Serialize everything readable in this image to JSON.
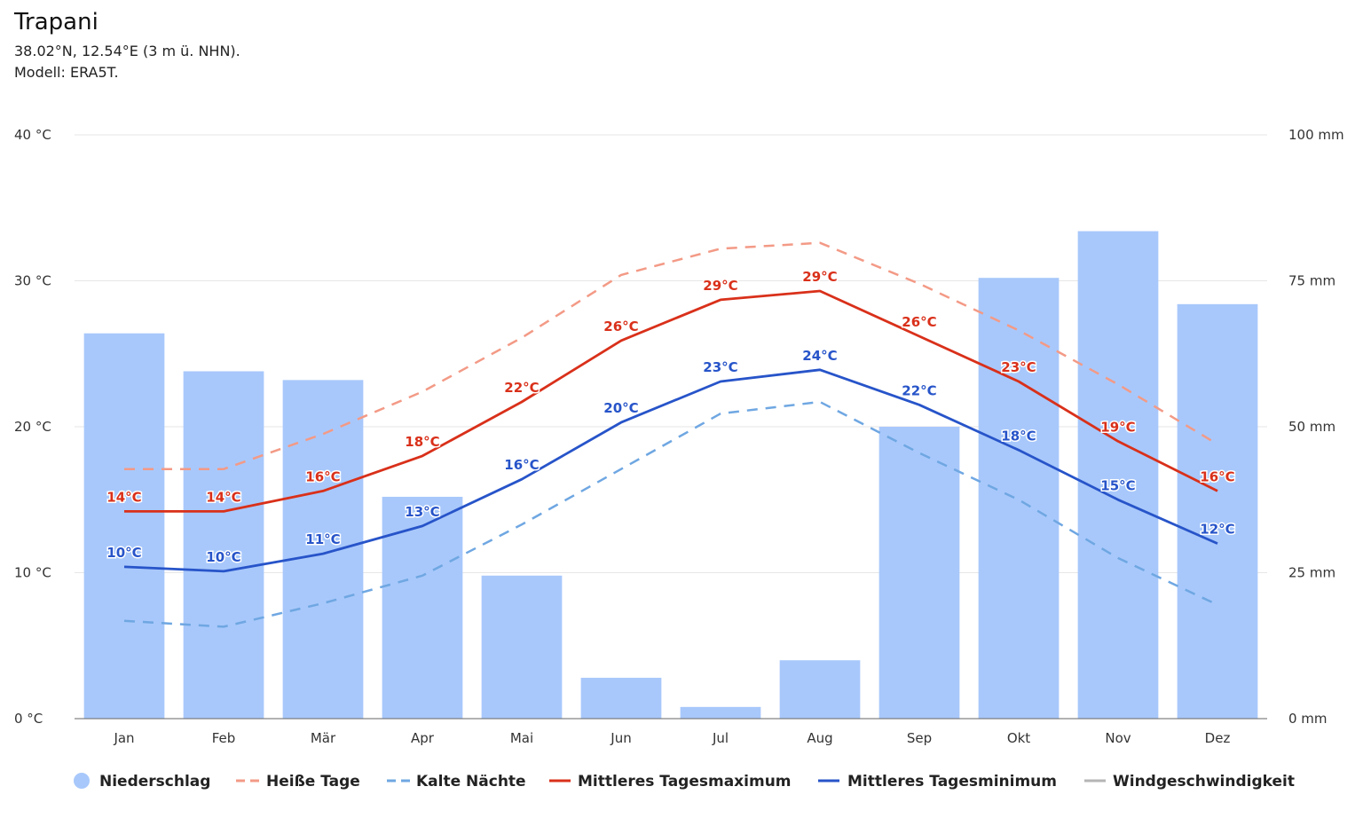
{
  "header": {
    "title": "Trapani",
    "coords": "38.02°N, 12.54°E (3 m ü. NHN).",
    "model": "Modell: ERA5T."
  },
  "colors": {
    "precip": "#a8c8fb",
    "hot": "#f39a86",
    "cold": "#6fa7e2",
    "tmax": "#d9301a",
    "tmin": "#2754c9",
    "wind": "#b5b5b5",
    "grid": "#e6e6e6",
    "axis": "#666666"
  },
  "chart_data": {
    "type": "bar+line",
    "categories": [
      "Jan",
      "Feb",
      "Mär",
      "Apr",
      "Mai",
      "Jun",
      "Jul",
      "Aug",
      "Sep",
      "Okt",
      "Nov",
      "Dez"
    ],
    "y_left": {
      "ticks": [
        0,
        10,
        20,
        30,
        40
      ],
      "tick_labels": [
        "0 °C",
        "10 °C",
        "20 °C",
        "30 °C",
        "40 °C"
      ],
      "range": [
        0,
        40
      ]
    },
    "y_right": {
      "ticks": [
        0,
        25,
        50,
        75,
        100
      ],
      "tick_labels": [
        "0 mm",
        "25 mm",
        "50 mm",
        "75 mm",
        "100 mm"
      ],
      "range": [
        0,
        100
      ]
    },
    "precipitation": {
      "name": "Niederschlag",
      "unit": "mm",
      "values": [
        66,
        59.5,
        58,
        38,
        24.5,
        7,
        2,
        10,
        50,
        75.5,
        83.5,
        71
      ]
    },
    "hot_days": {
      "name": "Heiße Tage",
      "values": [
        17.1,
        17.1,
        19.5,
        22.4,
        26.1,
        30.4,
        32.2,
        32.6,
        29.8,
        26.6,
        22.9,
        18.8
      ]
    },
    "cold_nights": {
      "name": "Kalte Nächte",
      "values": [
        6.7,
        6.3,
        7.9,
        9.8,
        13.3,
        17.1,
        20.9,
        21.7,
        18.2,
        15.0,
        11.0,
        7.8
      ]
    },
    "mean_max": {
      "name": "Mittleres Tagesmaximum",
      "values": [
        14.2,
        14.2,
        15.6,
        18.0,
        21.7,
        25.9,
        28.7,
        29.3,
        26.2,
        23.1,
        19.0,
        15.6
      ],
      "labels": [
        "14°C",
        "14°C",
        "16°C",
        "18°C",
        "22°C",
        "26°C",
        "29°C",
        "29°C",
        "26°C",
        "23°C",
        "19°C",
        "16°C"
      ]
    },
    "mean_min": {
      "name": "Mittleres Tagesminimum",
      "values": [
        10.4,
        10.1,
        11.3,
        13.2,
        16.4,
        20.3,
        23.1,
        23.9,
        21.5,
        18.4,
        15.0,
        12.0
      ],
      "labels": [
        "10°C",
        "10°C",
        "11°C",
        "13°C",
        "16°C",
        "20°C",
        "23°C",
        "24°C",
        "22°C",
        "18°C",
        "15°C",
        "12°C"
      ]
    },
    "wind": {
      "name": "Windgeschwindigkeit",
      "visible": false
    }
  }
}
